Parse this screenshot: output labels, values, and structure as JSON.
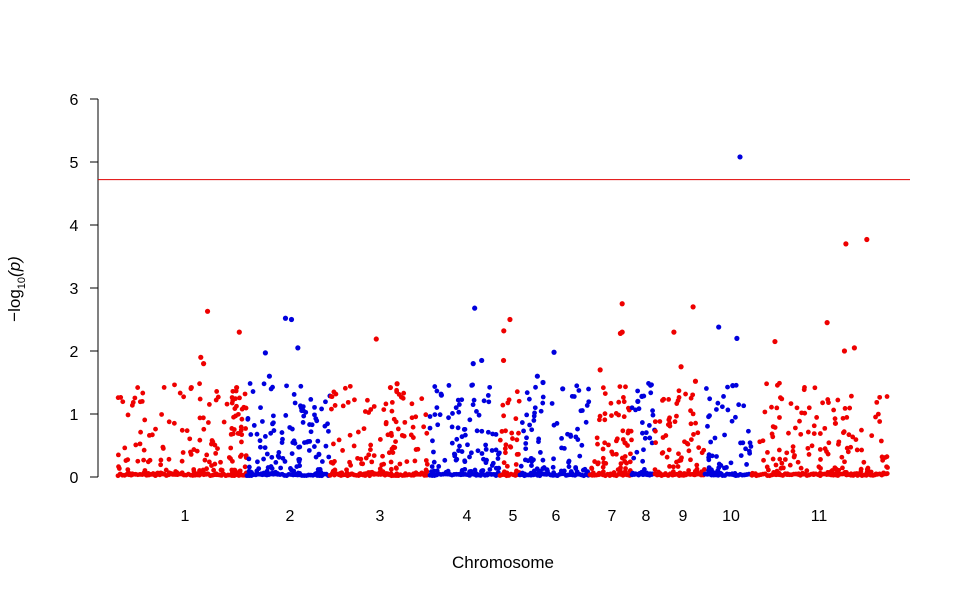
{
  "chart_data": {
    "type": "scatter",
    "title": "",
    "xlabel": "Chromosome",
    "ylabel": "−log10(p)",
    "ylabel_parts": {
      "prefix": "−log",
      "sub": "10",
      "suffix": "(p)"
    },
    "ylim": [
      0,
      6
    ],
    "y_ticks": [
      "0",
      "1",
      "2",
      "3",
      "4",
      "5",
      "6"
    ],
    "grid": false,
    "legend": "none",
    "threshold": {
      "value": 4.72,
      "color": "#e00000"
    },
    "series_colors": [
      "#ee0000",
      "#0000dd"
    ],
    "chromosomes": [
      {
        "label": "1",
        "color": "#ee0000",
        "n": 140,
        "peaks": [
          2.63,
          1.9,
          1.8,
          1.42
        ]
      },
      {
        "label": "",
        "color": "#ee0000",
        "n": 20,
        "peaks": [
          2.3,
          1.42
        ]
      },
      {
        "label": "2",
        "color": "#0000dd",
        "n": 120,
        "peaks": [
          2.52,
          2.5,
          2.05,
          1.97,
          1.6
        ]
      },
      {
        "label": "3",
        "color": "#ee0000",
        "n": 130,
        "peaks": [
          2.19,
          1.48,
          1.42
        ]
      },
      {
        "label": "4",
        "color": "#0000dd",
        "n": 100,
        "peaks": [
          2.68,
          1.85,
          1.8,
          1.3
        ]
      },
      {
        "label": "5",
        "color": "#ee0000",
        "n": 30,
        "peaks": [
          2.5,
          2.32,
          1.85
        ]
      },
      {
        "label": "6",
        "color": "#0000dd",
        "n": 90,
        "peaks": [
          1.98,
          1.6,
          1.5,
          1.4
        ]
      },
      {
        "label": "7",
        "color": "#ee0000",
        "n": 70,
        "peaks": [
          2.75,
          2.3,
          2.28,
          1.7
        ]
      },
      {
        "label": "8",
        "color": "#0000dd",
        "n": 35,
        "peaks": [
          1.28,
          1.2
        ]
      },
      {
        "label": "9",
        "color": "#ee0000",
        "n": 70,
        "peaks": [
          2.7,
          2.3,
          1.75,
          1.52
        ]
      },
      {
        "label": "10",
        "color": "#0000dd",
        "n": 55,
        "peaks": [
          5.08,
          2.38,
          2.2,
          1.45
        ]
      },
      {
        "label": "11",
        "color": "#ee0000",
        "n": 150,
        "peaks": [
          3.77,
          3.7,
          2.45,
          2.15,
          2.05,
          2.0
        ]
      }
    ]
  }
}
